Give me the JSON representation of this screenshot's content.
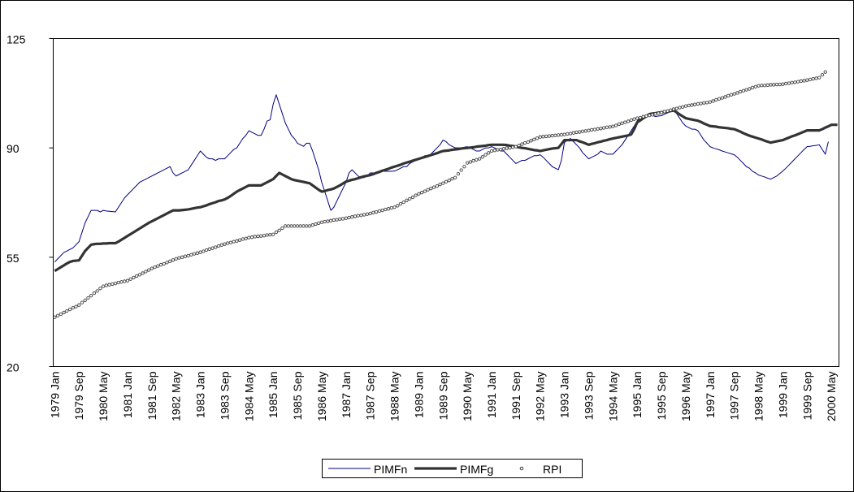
{
  "chart_data": {
    "type": "line",
    "categories": [
      "1979 Jan",
      null,
      null,
      null,
      null,
      null,
      null,
      null,
      "1979 Sep",
      null,
      null,
      null,
      null,
      null,
      null,
      null,
      "1980 May",
      null,
      null,
      null,
      null,
      null,
      null,
      null,
      "1981 Jan",
      null,
      null,
      null,
      null,
      null,
      null,
      null,
      "1981 Sep",
      null,
      null,
      null,
      null,
      null,
      null,
      null,
      "1982 May",
      null,
      null,
      null,
      null,
      null,
      null,
      null,
      "1983 Jan",
      null,
      null,
      null,
      null,
      null,
      null,
      null,
      "1983 Sep",
      null,
      null,
      null,
      null,
      null,
      null,
      null,
      "1984 May",
      null,
      null,
      null,
      null,
      null,
      null,
      null,
      "1985 Jan",
      null,
      null,
      null,
      null,
      null,
      null,
      null,
      "1985 Sep",
      null,
      null,
      null,
      null,
      null,
      null,
      null,
      "1986 May",
      null,
      null,
      null,
      null,
      null,
      null,
      null,
      "1987 Jan",
      null,
      null,
      null,
      null,
      null,
      null,
      null,
      "1987 Sep",
      null,
      null,
      null,
      null,
      null,
      null,
      null,
      "1988 May",
      null,
      null,
      null,
      null,
      null,
      null,
      null,
      "1989 Jan",
      null,
      null,
      null,
      null,
      null,
      null,
      null,
      "1989 Sep",
      null,
      null,
      null,
      null,
      null,
      null,
      null,
      "1990 May",
      null,
      null,
      null,
      null,
      null,
      null,
      null,
      "1991 Jan",
      null,
      null,
      null,
      null,
      null,
      null,
      null,
      "1991 Sep",
      null,
      null,
      null,
      null,
      null,
      null,
      null,
      "1992 May",
      null,
      null,
      null,
      null,
      null,
      null,
      null,
      "1993 Jan",
      null,
      null,
      null,
      null,
      null,
      null,
      null,
      "1993 Sep",
      null,
      null,
      null,
      null,
      null,
      null,
      null,
      "1994 May",
      null,
      null,
      null,
      null,
      null,
      null,
      null,
      "1995 Jan",
      null,
      null,
      null,
      null,
      null,
      null,
      null,
      "1995 Sep",
      null,
      null,
      null,
      null,
      null,
      null,
      null,
      "1996 May",
      null,
      null,
      null,
      null,
      null,
      null,
      null,
      "1997 Jan",
      null,
      null,
      null,
      null,
      null,
      null,
      null,
      "1997 Sep",
      null,
      null,
      null,
      null,
      null,
      null,
      null,
      "1998 May",
      null,
      null,
      null,
      null,
      null,
      null,
      null,
      "1999 Jan",
      null,
      null,
      null,
      null,
      null,
      null,
      null,
      "1999 Sep",
      null,
      null,
      null,
      null,
      null,
      null,
      null,
      "2000 May",
      null,
      null
    ],
    "series": [
      {
        "name": "PIMFn",
        "color": "#000080",
        "style": "thin-line",
        "values": [
          53.5,
          54.5,
          55.5,
          56.5,
          57,
          57.5,
          58,
          59,
          60,
          63,
          66,
          68,
          70,
          70,
          70,
          69.5,
          70,
          69.8,
          69.7,
          69.6,
          69.5,
          71,
          72.5,
          74,
          75,
          76,
          77,
          78,
          79,
          79.5,
          80,
          80.5,
          81,
          81.5,
          82,
          82.5,
          83,
          83.5,
          84,
          82,
          81,
          81.5,
          82,
          82.5,
          83,
          84.5,
          86,
          87.5,
          89,
          88,
          87,
          86.5,
          86.5,
          86,
          86.5,
          86.5,
          86.5,
          87.5,
          88.5,
          89.5,
          90,
          91.5,
          93,
          94,
          95.5,
          95,
          94.5,
          94,
          94,
          96,
          98.6,
          99,
          104,
          107,
          104,
          101,
          98,
          96,
          94,
          93,
          91.5,
          91,
          90.5,
          91.5,
          91.5,
          89,
          86,
          83,
          79,
          76,
          73,
          70,
          71,
          73,
          75,
          77,
          79,
          82,
          83,
          82,
          81,
          80.5,
          80.5,
          81,
          82,
          82,
          82,
          82.5,
          82.5,
          82.5,
          82.5,
          82.5,
          82.6,
          83,
          83.5,
          84,
          84,
          85,
          85.5,
          86,
          86.5,
          87,
          87.5,
          87.5,
          88,
          89,
          90,
          91,
          92.5,
          92,
          91,
          90.5,
          90,
          90,
          90,
          90.2,
          90.4,
          90,
          89.5,
          89,
          89,
          89.5,
          90,
          90,
          90.4,
          90,
          89.5,
          89,
          89,
          88,
          87,
          86,
          85,
          85.5,
          86,
          86,
          86.5,
          87,
          87.5,
          87.5,
          87.8,
          87,
          86,
          85,
          84,
          83.5,
          83,
          86,
          91.7,
          92.5,
          93,
          92,
          91,
          90,
          88.5,
          87.5,
          86.5,
          87,
          87.5,
          88,
          89,
          88.5,
          88,
          88,
          88,
          89,
          90,
          91,
          92.5,
          94,
          95.5,
          97,
          98.7,
          99.5,
          100,
          100.5,
          100.8,
          100.5,
          100,
          100.2,
          100.3,
          100.8,
          101.2,
          101.6,
          102,
          101,
          99.5,
          98,
          97,
          96.5,
          96,
          96,
          95.5,
          94,
          92.5,
          91.5,
          90.4,
          90,
          89.7,
          89.4,
          89,
          88.7,
          88.4,
          88.1,
          87.8,
          87,
          86,
          85,
          84,
          83.5,
          82.5,
          82,
          81.3,
          81,
          80.7,
          80.3,
          80,
          80.5,
          81,
          81.8,
          82.6,
          83.5,
          84.5,
          85.5,
          86.5,
          87.5,
          88.5,
          89.5,
          90.4,
          90.5,
          90.7,
          90.8,
          91,
          89.5,
          88,
          92,
          null,
          null,
          null
        ]
      },
      {
        "name": "PIMFg",
        "color": "#333333",
        "style": "thick-line",
        "values": [
          50.6,
          51.2,
          51.8,
          52.4,
          53,
          53.5,
          53.8,
          53.9,
          54,
          55.5,
          57,
          58,
          59,
          59.2,
          59.3,
          59.3,
          59.4,
          59.4,
          59.5,
          59.5,
          59.5,
          60,
          60.6,
          61.2,
          61.8,
          62.4,
          63,
          63.6,
          64.2,
          64.8,
          65.4,
          66,
          66.5,
          67,
          67.5,
          68,
          68.5,
          69,
          69.5,
          70,
          70,
          70,
          70.1,
          70.2,
          70.3,
          70.5,
          70.7,
          70.9,
          71,
          71.3,
          71.6,
          72,
          72.3,
          72.6,
          73,
          73.2,
          73.5,
          74,
          74.6,
          75.3,
          76,
          76.5,
          77,
          77.5,
          78,
          78,
          78,
          78,
          78,
          78.5,
          79,
          79.5,
          80,
          81,
          82,
          81.5,
          81,
          80.5,
          80,
          79.7,
          79.5,
          79.3,
          79.1,
          78.9,
          78.7,
          78,
          77.3,
          76.6,
          76,
          76.2,
          76.5,
          76.7,
          77,
          77.5,
          78,
          78.6,
          79.2,
          79.5,
          79.8,
          80,
          80.3,
          80.6,
          80.9,
          81.1,
          81.3,
          81.6,
          82,
          82.3,
          82.7,
          83,
          83.3,
          83.7,
          84,
          84.3,
          84.6,
          85,
          85.3,
          85.6,
          85.9,
          86.2,
          86.5,
          86.8,
          87.1,
          87.4,
          87.7,
          88,
          88.3,
          88.7,
          89,
          89.1,
          89.2,
          89.4,
          89.5,
          89.6,
          89.8,
          89.9,
          90,
          90.1,
          90.2,
          90.4,
          90.5,
          90.6,
          90.7,
          90.9,
          91,
          91,
          91,
          91,
          91,
          90.9,
          90.7,
          90.6,
          90.4,
          90.2,
          90,
          89.9,
          89.7,
          89.5,
          89.3,
          89.2,
          89,
          89.2,
          89.4,
          89.6,
          89.8,
          89.9,
          90,
          91.2,
          92.5,
          92.5,
          92.5,
          92.5,
          92.5,
          92.1,
          91.8,
          91.4,
          91,
          91.3,
          91.5,
          91.8,
          92,
          92.3,
          92.5,
          92.8,
          93,
          93.2,
          93.4,
          93.6,
          93.8,
          94,
          94.3,
          96,
          98.2,
          98.8,
          99.5,
          100.1,
          100.8,
          101,
          101.1,
          101.3,
          101.4,
          101.5,
          101.7,
          101.8,
          102,
          101.4,
          100.7,
          100.1,
          99.5,
          99.3,
          99.1,
          98.9,
          98.7,
          98.3,
          97.8,
          97.4,
          97,
          96.9,
          96.8,
          96.6,
          96.5,
          96.4,
          96.3,
          96.1,
          96,
          95.6,
          95.2,
          94.7,
          94.3,
          93.9,
          93.6,
          93.3,
          93,
          92.7,
          92.3,
          92,
          91.7,
          91.9,
          92.1,
          92.3,
          92.5,
          92.9,
          93.3,
          93.7,
          94,
          94.4,
          94.8,
          95.2,
          95.6,
          95.6,
          95.6,
          95.6,
          95.6,
          96,
          96.5,
          96.9,
          97.4,
          97.4,
          97.4
        ]
      },
      {
        "name": "RPI",
        "color": "#404040",
        "style": "dots",
        "values": [
          35.8,
          36.3,
          36.8,
          37.3,
          37.8,
          38.3,
          38.8,
          39.2,
          39.7,
          40.5,
          41.2,
          42,
          42.7,
          43.5,
          44.2,
          45,
          45.7,
          46,
          46.2,
          46.4,
          46.6,
          46.9,
          47.1,
          47.3,
          47.5,
          48,
          48.5,
          49,
          49.4,
          49.9,
          50.4,
          50.9,
          51.4,
          51.8,
          52.2,
          52.6,
          52.9,
          53.3,
          53.7,
          54.1,
          54.5,
          54.8,
          55,
          55.3,
          55.5,
          55.8,
          56.1,
          56.3,
          56.6,
          56.9,
          57.3,
          57.6,
          57.9,
          58.2,
          58.6,
          58.9,
          59.2,
          59.5,
          59.7,
          60,
          60.2,
          60.5,
          60.8,
          61,
          61.3,
          61.4,
          61.6,
          61.7,
          61.8,
          61.9,
          62.1,
          62.2,
          62.3,
          63,
          63.6,
          64.3,
          65,
          65,
          65,
          65,
          65,
          65,
          65,
          65,
          65,
          65.3,
          65.6,
          65.9,
          66.2,
          66.4,
          66.5,
          66.7,
          66.9,
          67,
          67.2,
          67.3,
          67.5,
          67.7,
          67.9,
          68.1,
          68.3,
          68.4,
          68.6,
          68.8,
          69,
          69.3,
          69.5,
          69.8,
          70,
          70.3,
          70.5,
          70.8,
          71,
          71.5,
          72.1,
          72.6,
          73.2,
          73.7,
          74.2,
          74.8,
          75.3,
          75.7,
          76.1,
          76.6,
          77,
          77.4,
          77.8,
          78.3,
          78.7,
          79.2,
          79.6,
          80.1,
          80.5,
          81.7,
          82.9,
          84,
          85.2,
          85.5,
          85.9,
          86.2,
          86.5,
          87.1,
          87.8,
          88.4,
          89,
          89.2,
          89.4,
          89.5,
          89.7,
          89.9,
          90,
          90.2,
          90.4,
          90.8,
          91.2,
          91.6,
          91.9,
          92.3,
          92.7,
          93.1,
          93.5,
          93.6,
          93.7,
          93.8,
          93.9,
          94,
          94.1,
          94.2,
          94.3,
          94.5,
          94.6,
          94.8,
          95,
          95.1,
          95.3,
          95.4,
          95.6,
          95.8,
          95.9,
          96.1,
          96.2,
          96.4,
          96.6,
          96.7,
          96.9,
          97.2,
          97.6,
          97.9,
          98.2,
          98.5,
          98.9,
          99.2,
          99.5,
          99.7,
          100,
          100.2,
          100.4,
          100.6,
          100.9,
          101.1,
          101.3,
          101.6,
          101.8,
          102.1,
          102.4,
          102.6,
          102.9,
          103.1,
          103.4,
          103.6,
          103.7,
          103.9,
          104.1,
          104.2,
          104.4,
          104.5,
          104.7,
          105,
          105.4,
          105.7,
          106,
          106.3,
          106.7,
          107,
          107.3,
          107.6,
          108,
          108.3,
          108.6,
          108.9,
          109.3,
          109.6,
          109.9,
          110,
          110,
          110.1,
          110.2,
          110.2,
          110.3,
          110.3,
          110.4,
          110.6,
          110.7,
          110.9,
          111,
          111.2,
          111.4,
          111.5,
          111.7,
          111.9,
          112.1,
          112.3,
          112.5,
          113.4,
          114.3,
          null,
          null,
          null,
          null
        ]
      }
    ],
    "ylim": [
      20,
      125
    ],
    "yticks": [
      20,
      55,
      90,
      125
    ],
    "grid": false,
    "legend": "bottom"
  }
}
